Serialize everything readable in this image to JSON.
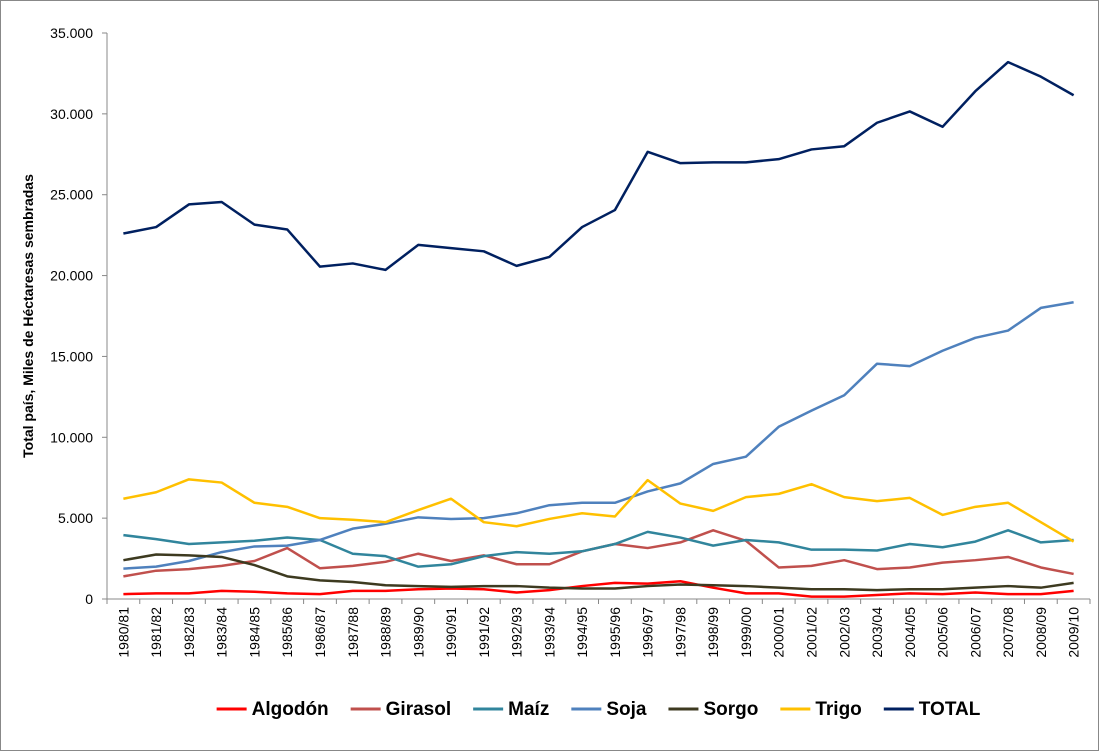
{
  "chart_data": {
    "type": "line",
    "ylabel": "Total país, Miles de Héctaresas sembradas",
    "categories": [
      "1980/81",
      "1981/82",
      "1982/83",
      "1983/84",
      "1984/85",
      "1985/86",
      "1986/87",
      "1987/88",
      "1988/89",
      "1989/90",
      "1990/91",
      "1991/92",
      "1992/93",
      "1993/94",
      "1994/95",
      "1995/96",
      "1996/97",
      "1997/98",
      "1998/99",
      "1999/00",
      "2000/01",
      "2001/02",
      "2002/03",
      "2003/04",
      "2004/05",
      "2005/06",
      "2006/07",
      "2007/08",
      "2008/09",
      "2009/10"
    ],
    "series": [
      {
        "name": "Algodón",
        "color": "#ff0000",
        "values": [
          300,
          350,
          350,
          500,
          450,
          350,
          300,
          500,
          500,
          600,
          650,
          600,
          400,
          550,
          800,
          1000,
          950,
          1100,
          700,
          350,
          350,
          150,
          150,
          250,
          350,
          300,
          400,
          300,
          300,
          500
        ]
      },
      {
        "name": "Girasol",
        "color": "#c0504d",
        "values": [
          1400,
          1750,
          1850,
          2050,
          2350,
          3150,
          1900,
          2050,
          2300,
          2800,
          2350,
          2700,
          2150,
          2150,
          2950,
          3400,
          3150,
          3500,
          4250,
          3600,
          1950,
          2050,
          2400,
          1850,
          1950,
          2250,
          2400,
          2600,
          1950,
          1550
        ]
      },
      {
        "name": "Maíz",
        "color": "#31859c",
        "values": [
          3950,
          3700,
          3400,
          3500,
          3600,
          3800,
          3650,
          2800,
          2650,
          2000,
          2150,
          2650,
          2900,
          2800,
          2950,
          3400,
          4150,
          3800,
          3300,
          3650,
          3500,
          3050,
          3050,
          3000,
          3400,
          3200,
          3550,
          4250,
          3500,
          3650
        ]
      },
      {
        "name": "Soja",
        "color": "#4f81bd",
        "values": [
          1880,
          2000,
          2350,
          2900,
          3250,
          3300,
          3650,
          4350,
          4650,
          5050,
          4950,
          5000,
          5300,
          5800,
          5950,
          5950,
          6650,
          7150,
          8350,
          8800,
          10650,
          11650,
          12600,
          14550,
          14400,
          15350,
          16150,
          16600,
          18000,
          18350
        ]
      },
      {
        "name": "Sorgo",
        "color": "#3d3a20",
        "values": [
          2400,
          2750,
          2700,
          2600,
          2100,
          1400,
          1150,
          1050,
          850,
          800,
          750,
          800,
          800,
          700,
          650,
          650,
          800,
          900,
          850,
          800,
          700,
          600,
          600,
          550,
          600,
          600,
          700,
          800,
          700,
          1000
        ]
      },
      {
        "name": "Trigo",
        "color": "#ffc000",
        "values": [
          6200,
          6600,
          7400,
          7200,
          5950,
          5700,
          5000,
          4900,
          4750,
          5500,
          6200,
          4750,
          4500,
          4950,
          5300,
          5100,
          7350,
          5900,
          5450,
          6300,
          6500,
          7100,
          6300,
          6050,
          6250,
          5200,
          5700,
          5950,
          4750,
          3550
        ]
      },
      {
        "name": "TOTAL",
        "color": "#002060",
        "values": [
          22600,
          23000,
          24400,
          24550,
          23150,
          22850,
          20550,
          20750,
          20350,
          21900,
          21700,
          21500,
          20600,
          21150,
          23000,
          24050,
          27650,
          26950,
          27000,
          27000,
          27200,
          27800,
          28000,
          29450,
          30150,
          29200,
          31400,
          33200,
          32300,
          31150
        ]
      }
    ],
    "ylim": [
      0,
      35000
    ],
    "yticks": [
      0,
      {
        "value": 5000,
        "label": "5.000"
      },
      {
        "value": 10000,
        "label": "10.000"
      },
      {
        "value": 15000,
        "label": "15.000"
      },
      {
        "value": 20000,
        "label": "20.000"
      },
      {
        "value": 25000,
        "label": "25.000"
      },
      {
        "value": 30000,
        "label": "30.000"
      },
      {
        "value": 35000,
        "label": "35.000"
      }
    ],
    "legend": "bottom"
  }
}
